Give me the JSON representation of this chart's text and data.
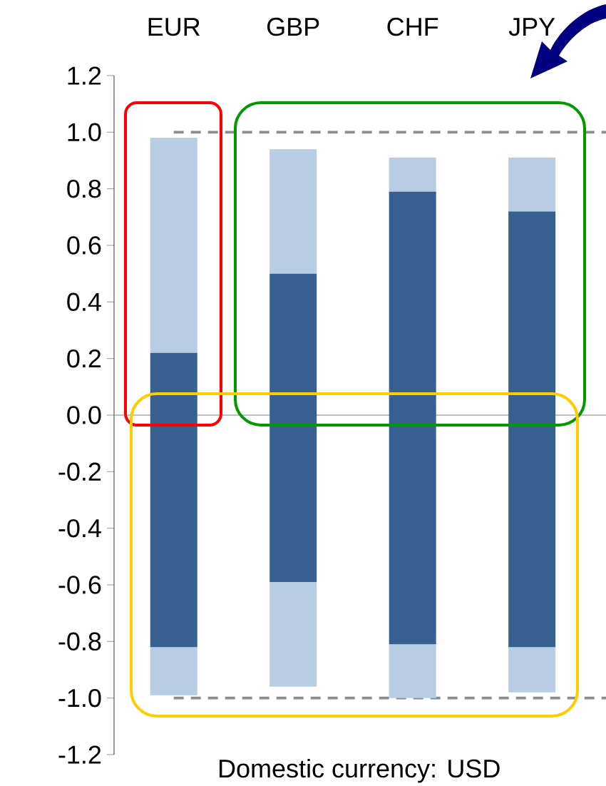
{
  "chart_data": {
    "type": "bar",
    "stacked": true,
    "categories": [
      "EUR",
      "GBP",
      "CHF",
      "JPY"
    ],
    "xlabel": "Domestic currency: USD",
    "series": [
      {
        "color": "#36608f",
        "values": [
          0.22,
          0.5,
          0.79,
          0.72
        ]
      },
      {
        "color": "#b8cce4",
        "values": [
          0.76,
          0.44,
          0.12,
          0.19
        ]
      },
      {
        "color": "#36608f",
        "values": [
          -0.82,
          -0.59,
          -0.81,
          -0.82
        ]
      },
      {
        "color": "#b8cce4",
        "values": [
          -0.17,
          -0.37,
          -0.19,
          -0.16
        ]
      }
    ],
    "ylim": [
      -1.2,
      1.2
    ],
    "yticks": [
      {
        "value": -1.2,
        "label": "-1.2"
      },
      {
        "value": -1.0,
        "label": "-1.0"
      },
      {
        "value": -0.8,
        "label": "-0.8"
      },
      {
        "value": -0.6,
        "label": "-0.6"
      },
      {
        "value": -0.4,
        "label": "-0.4"
      },
      {
        "value": -0.2,
        "label": "-0.2"
      },
      {
        "value": 0,
        "label": "0.0"
      },
      {
        "value": 0.2,
        "label": "0.2"
      },
      {
        "value": 0.4,
        "label": "0.4"
      },
      {
        "value": 0.6,
        "label": "0.6"
      },
      {
        "value": 0.8,
        "label": "0.8"
      },
      {
        "value": 1.0,
        "label": "1.0"
      },
      {
        "value": 1.2,
        "label": "1.2"
      }
    ],
    "ref_lines": [
      {
        "axis": "y",
        "value": 1.0,
        "color": "#8c8c8c",
        "line_style": "dashed"
      },
      {
        "axis": "y",
        "value": -1.0,
        "color": "#8c8c8c",
        "line_style": "dashed"
      }
    ]
  }
}
